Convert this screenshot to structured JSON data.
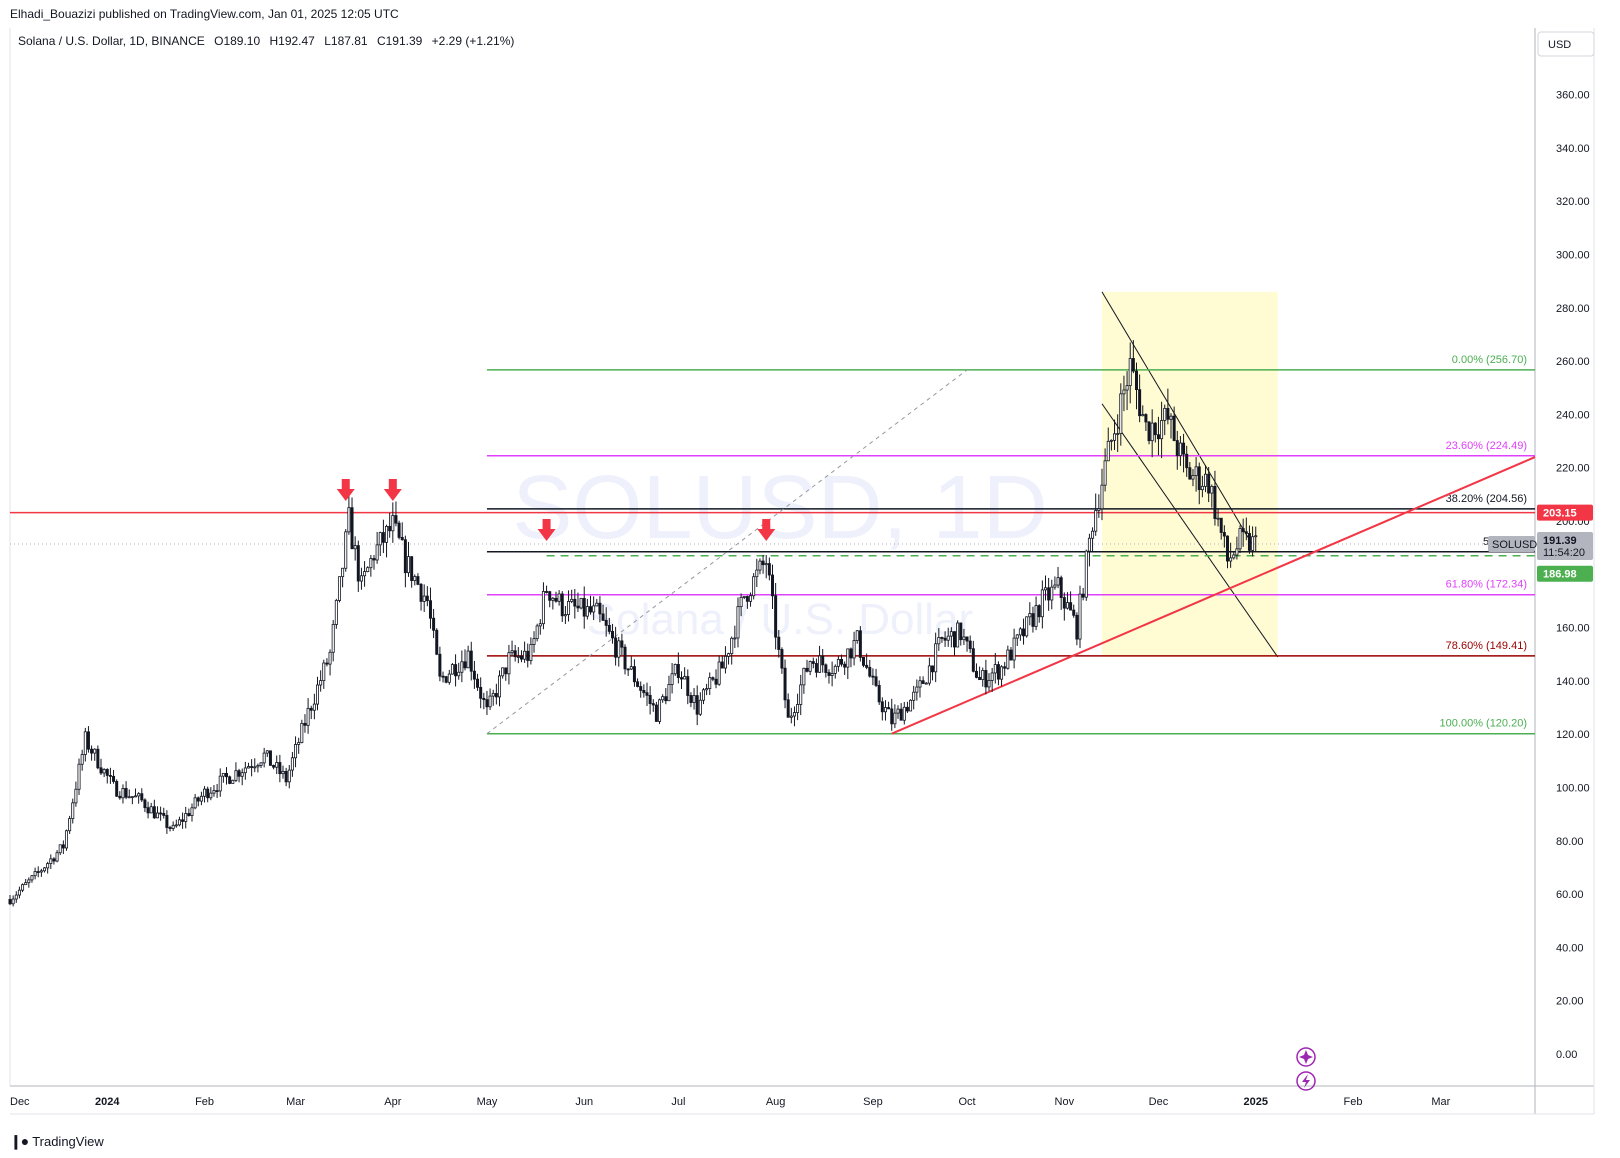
{
  "header": {
    "published": "Elhadi_Bouazizi published on TradingView.com, Jan 01, 2025 12:05 UTC"
  },
  "legend": {
    "symbol": "Solana / U.S. Dollar, 1D, BINANCE",
    "o_label": "O",
    "o_value": "189.10",
    "h_label": "H",
    "h_value": "192.47",
    "l_label": "L",
    "l_value": "187.81",
    "c_label": "C",
    "c_value": "191.39",
    "change": "+2.29 (+1.21%)"
  },
  "currency_label": "USD",
  "watermark": {
    "main": "SOLUSD, 1D",
    "sub": "Solana / U.S. Dollar"
  },
  "branding": {
    "name": "TradingView",
    "icon": "tradingview-logo-icon"
  },
  "chart_data": {
    "type": "candlestick",
    "symbol": "SOLUSD",
    "interval": "1D",
    "y_axis": {
      "ticks": [
        "0.00",
        "20.00",
        "40.00",
        "60.00",
        "80.00",
        "100.00",
        "120.00",
        "140.00",
        "160.00",
        "180.00",
        "200.00",
        "220.00",
        "240.00",
        "260.00",
        "280.00",
        "300.00",
        "320.00",
        "340.00",
        "360.00"
      ],
      "range": [
        -12,
        385
      ]
    },
    "x_axis": {
      "ticks": [
        {
          "label": "Dec",
          "date": "2023-12-01"
        },
        {
          "label": "2024",
          "date": "2024-01-01"
        },
        {
          "label": "Feb",
          "date": "2024-02-01"
        },
        {
          "label": "Mar",
          "date": "2024-03-01"
        },
        {
          "label": "Apr",
          "date": "2024-04-01"
        },
        {
          "label": "May",
          "date": "2024-05-01"
        },
        {
          "label": "Jun",
          "date": "2024-06-01"
        },
        {
          "label": "Jul",
          "date": "2024-07-01"
        },
        {
          "label": "Aug",
          "date": "2024-08-01"
        },
        {
          "label": "Sep",
          "date": "2024-09-01"
        },
        {
          "label": "Oct",
          "date": "2024-10-01"
        },
        {
          "label": "Nov",
          "date": "2024-11-01"
        },
        {
          "label": "Dec",
          "date": "2024-12-01"
        },
        {
          "label": "2025",
          "date": "2025-01-01"
        },
        {
          "label": "Feb",
          "date": "2025-02-01"
        },
        {
          "label": "Mar",
          "date": "2025-03-01"
        }
      ],
      "range": [
        "2023-12-01",
        "2025-03-31"
      ]
    },
    "price_path": [
      [
        "2023-12-01",
        58
      ],
      [
        "2023-12-10",
        68
      ],
      [
        "2023-12-18",
        78
      ],
      [
        "2023-12-25",
        118
      ],
      [
        "2024-01-03",
        100
      ],
      [
        "2024-01-12",
        95
      ],
      [
        "2024-01-22",
        84
      ],
      [
        "2024-02-01",
        98
      ],
      [
        "2024-02-10",
        105
      ],
      [
        "2024-02-20",
        112
      ],
      [
        "2024-02-27",
        103
      ],
      [
        "2024-03-05",
        128
      ],
      [
        "2024-03-12",
        150
      ],
      [
        "2024-03-18",
        200
      ],
      [
        "2024-03-22",
        175
      ],
      [
        "2024-03-26",
        188
      ],
      [
        "2024-04-01",
        198
      ],
      [
        "2024-04-05",
        185
      ],
      [
        "2024-04-12",
        170
      ],
      [
        "2024-04-16",
        140
      ],
      [
        "2024-04-20",
        145
      ],
      [
        "2024-04-25",
        150
      ],
      [
        "2024-05-01",
        128
      ],
      [
        "2024-05-08",
        148
      ],
      [
        "2024-05-15",
        150
      ],
      [
        "2024-05-20",
        175
      ],
      [
        "2024-05-25",
        168
      ],
      [
        "2024-06-05",
        165
      ],
      [
        "2024-06-15",
        145
      ],
      [
        "2024-06-24",
        128
      ],
      [
        "2024-07-01",
        145
      ],
      [
        "2024-07-07",
        130
      ],
      [
        "2024-07-15",
        145
      ],
      [
        "2024-07-22",
        172
      ],
      [
        "2024-07-29",
        185
      ],
      [
        "2024-08-02",
        150
      ],
      [
        "2024-08-05",
        125
      ],
      [
        "2024-08-12",
        148
      ],
      [
        "2024-08-20",
        145
      ],
      [
        "2024-08-27",
        155
      ],
      [
        "2024-09-02",
        135
      ],
      [
        "2024-09-07",
        125
      ],
      [
        "2024-09-15",
        135
      ],
      [
        "2024-09-23",
        155
      ],
      [
        "2024-09-29",
        158
      ],
      [
        "2024-10-05",
        140
      ],
      [
        "2024-10-12",
        145
      ],
      [
        "2024-10-20",
        160
      ],
      [
        "2024-10-25",
        170
      ],
      [
        "2024-10-30",
        175
      ],
      [
        "2024-11-05",
        160
      ],
      [
        "2024-11-10",
        200
      ],
      [
        "2024-11-16",
        230
      ],
      [
        "2024-11-22",
        258
      ],
      [
        "2024-11-27",
        235
      ],
      [
        "2024-12-04",
        238
      ],
      [
        "2024-12-10",
        218
      ],
      [
        "2024-12-17",
        215
      ],
      [
        "2024-12-23",
        185
      ],
      [
        "2024-12-27",
        192
      ],
      [
        "2025-01-01",
        191.39
      ]
    ],
    "horizontal_lines": [
      {
        "value": 203.15,
        "color": "#f23645",
        "label": "203.15",
        "from": "2023-12-01"
      },
      {
        "value": 186.98,
        "color": "#4caf50",
        "dashed": true,
        "label": "186.98",
        "from": "2024-05-20"
      }
    ],
    "fib_retracement": {
      "from": "2024-05-01",
      "to": "2025-03-31",
      "levels": [
        {
          "pct": "0.00%",
          "value": 256.7,
          "label": "0.00% (256.70)",
          "color": "#4caf50"
        },
        {
          "pct": "23.60%",
          "value": 224.49,
          "label": "23.60% (224.49)",
          "color": "#e040fb"
        },
        {
          "pct": "38.20%",
          "value": 204.56,
          "label": "38.20% (204.56)",
          "color": "#131722"
        },
        {
          "pct": "50.00%",
          "value": 188.45,
          "label": "50.00% (",
          "color": "#131722"
        },
        {
          "pct": "61.80%",
          "value": 172.34,
          "label": "61.80% (172.34)",
          "color": "#e040fb"
        },
        {
          "pct": "78.60%",
          "value": 149.41,
          "label": "78.60% (149.41)",
          "color": "#990000"
        },
        {
          "pct": "100.00%",
          "value": 120.2,
          "label": "100.00% (120.20)",
          "color": "#4caf50"
        }
      ]
    },
    "trendline": {
      "color": "#f23645",
      "points": [
        [
          "2024-09-07",
          120.2
        ],
        [
          "2025-03-31",
          224
        ]
      ]
    },
    "diagonal_guide": {
      "color": "#9598a1",
      "dashed": true,
      "points": [
        [
          "2024-05-01",
          120.2
        ],
        [
          "2024-10-01",
          256.7
        ]
      ]
    },
    "descending_channel": {
      "upper": [
        [
          "2024-11-13",
          286
        ],
        [
          "2024-12-31",
          191
        ]
      ],
      "lower": [
        [
          "2024-11-13",
          244
        ],
        [
          "2025-01-08",
          149
        ]
      ],
      "fill_color": "#fff9c4"
    },
    "resistance_markers": [
      {
        "date": "2024-03-17",
        "value": 203
      },
      {
        "date": "2024-04-01",
        "value": 203
      },
      {
        "date": "2024-05-20",
        "value": 188
      },
      {
        "date": "2024-07-29",
        "value": 188
      }
    ],
    "last_price": {
      "label": "SOLUSD",
      "value": "191.39",
      "countdown": "11:54:20"
    }
  }
}
